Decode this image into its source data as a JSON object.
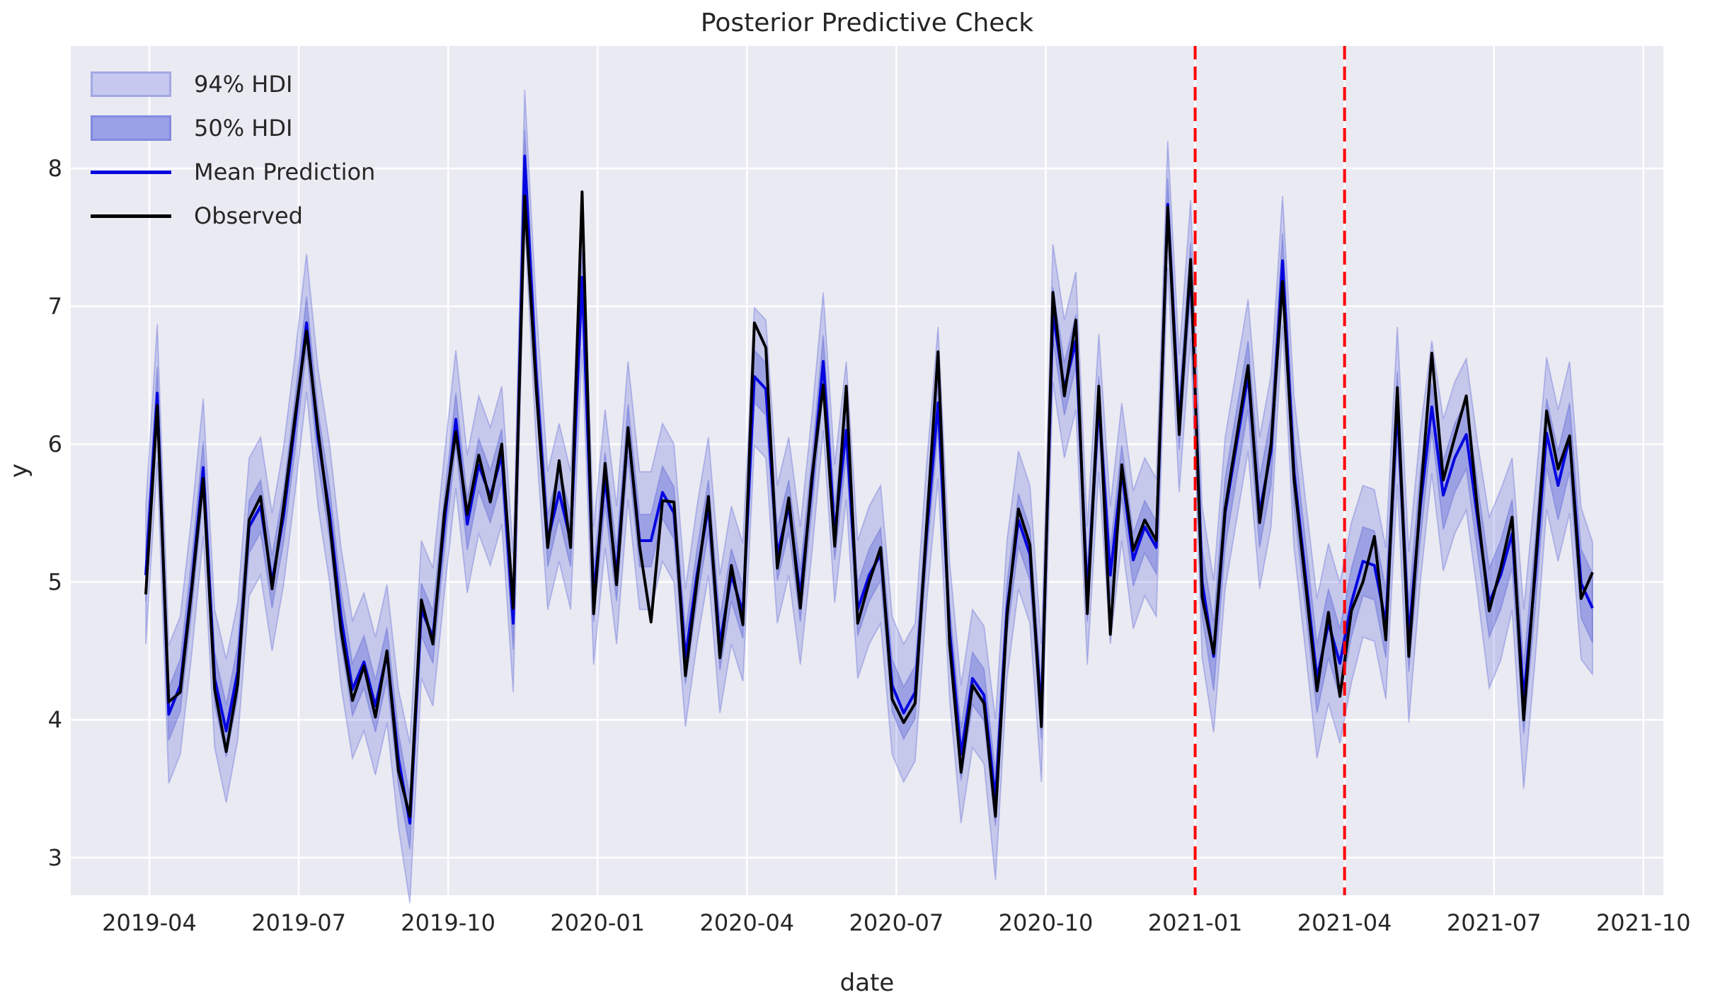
{
  "title": "Posterior Predictive Check",
  "x_axis_label": "date",
  "y_axis_label": "y",
  "legend": {
    "items": [
      {
        "label": "94% HDI",
        "kind": "band",
        "color_key": "band94_legend"
      },
      {
        "label": "50% HDI",
        "kind": "band",
        "color_key": "band50_legend"
      },
      {
        "label": "Mean Prediction",
        "kind": "line",
        "color_key": "mean_line"
      },
      {
        "label": "Observed",
        "kind": "line",
        "color_key": "observed"
      }
    ]
  },
  "colors": {
    "plot_bg": "#eaeaf2",
    "grid": "#ffffff",
    "text": "#262626",
    "observed": "#000000",
    "mean_line": "#0606df",
    "band_base": "#4650d2",
    "band94_alpha": 0.22,
    "band50_alpha": 0.32,
    "band_edge_alpha": 0.3,
    "band94_legend": "#c6c8ef",
    "band94_legend_border": "#a3a8e4",
    "band50_legend": "#9aa0e6",
    "band50_legend_border": "#8289df",
    "vline": "#ff0000"
  },
  "chart_data": {
    "type": "line",
    "title": "Posterior Predictive Check",
    "xlabel": "date",
    "ylabel": "y",
    "grid": true,
    "legend_position": "upper-left",
    "ylim": [
      2.73,
      8.89
    ],
    "y_ticks": [
      3,
      4,
      5,
      6,
      7,
      8
    ],
    "x_tick_labels": [
      "2019-04",
      "2019-07",
      "2019-10",
      "2020-01",
      "2020-04",
      "2020-07",
      "2020-10",
      "2021-01",
      "2021-04",
      "2021-07",
      "2021-10"
    ],
    "vlines": {
      "dates": [
        "2021-01-01",
        "2021-04-01"
      ],
      "tick_index": [
        7,
        8
      ],
      "style": "dashed",
      "color": "#ff0000"
    },
    "frequency": "weekly",
    "x_dates": [
      "2019-03-31",
      "2019-04-07",
      "2019-04-14",
      "2019-04-21",
      "2019-04-28",
      "2019-05-05",
      "2019-05-12",
      "2019-05-19",
      "2019-05-26",
      "2019-06-02",
      "2019-06-09",
      "2019-06-16",
      "2019-06-23",
      "2019-06-30",
      "2019-07-07",
      "2019-07-14",
      "2019-07-21",
      "2019-07-28",
      "2019-08-04",
      "2019-08-11",
      "2019-08-18",
      "2019-08-25",
      "2019-09-01",
      "2019-09-08",
      "2019-09-15",
      "2019-09-22",
      "2019-09-29",
      "2019-10-06",
      "2019-10-13",
      "2019-10-20",
      "2019-10-27",
      "2019-11-03",
      "2019-11-10",
      "2019-11-17",
      "2019-11-24",
      "2019-12-01",
      "2019-12-08",
      "2019-12-15",
      "2019-12-22",
      "2019-12-29",
      "2020-01-05",
      "2020-01-12",
      "2020-01-19",
      "2020-01-26",
      "2020-02-02",
      "2020-02-09",
      "2020-02-16",
      "2020-02-23",
      "2020-03-01",
      "2020-03-08",
      "2020-03-15",
      "2020-03-22",
      "2020-03-29",
      "2020-04-05",
      "2020-04-12",
      "2020-04-19",
      "2020-04-26",
      "2020-05-03",
      "2020-05-10",
      "2020-05-17",
      "2020-05-24",
      "2020-05-31",
      "2020-06-07",
      "2020-06-14",
      "2020-06-21",
      "2020-06-28",
      "2020-07-05",
      "2020-07-12",
      "2020-07-19",
      "2020-07-26",
      "2020-08-02",
      "2020-08-09",
      "2020-08-16",
      "2020-08-23",
      "2020-08-30",
      "2020-09-06",
      "2020-09-13",
      "2020-09-20",
      "2020-09-27",
      "2020-10-04",
      "2020-10-11",
      "2020-10-18",
      "2020-10-25",
      "2020-11-01",
      "2020-11-08",
      "2020-11-15",
      "2020-11-22",
      "2020-11-29",
      "2020-12-06",
      "2020-12-13",
      "2020-12-20",
      "2020-12-27",
      "2021-01-03",
      "2021-01-10",
      "2021-01-17",
      "2021-01-24",
      "2021-01-31",
      "2021-02-07",
      "2021-02-14",
      "2021-02-21",
      "2021-02-28",
      "2021-03-07",
      "2021-03-14",
      "2021-03-21",
      "2021-03-28",
      "2021-04-04",
      "2021-04-11",
      "2021-04-18",
      "2021-04-25",
      "2021-05-02",
      "2021-05-09",
      "2021-05-16",
      "2021-05-23",
      "2021-05-30",
      "2021-06-06",
      "2021-06-13",
      "2021-06-20",
      "2021-06-27",
      "2021-07-04",
      "2021-07-11",
      "2021-07-18",
      "2021-07-25",
      "2021-08-01",
      "2021-08-08",
      "2021-08-15",
      "2021-08-22",
      "2021-08-29"
    ],
    "series": [
      {
        "name": "Observed",
        "values": [
          4.91,
          6.28,
          4.13,
          4.2,
          4.95,
          5.75,
          4.22,
          3.77,
          4.26,
          5.45,
          5.62,
          4.95,
          5.55,
          6.2,
          6.82,
          6.1,
          5.44,
          4.65,
          4.14,
          4.39,
          4.02,
          4.5,
          3.63,
          3.3,
          4.87,
          4.55,
          5.5,
          6.09,
          5.49,
          5.92,
          5.58,
          6.0,
          4.81,
          7.8,
          6.4,
          5.25,
          5.88,
          5.25,
          7.83,
          4.77,
          5.86,
          4.98,
          6.12,
          5.26,
          4.71,
          5.59,
          5.58,
          4.32,
          5.0,
          5.62,
          4.45,
          5.12,
          4.69,
          6.88,
          6.7,
          5.1,
          5.61,
          4.81,
          5.75,
          6.43,
          5.26,
          6.42,
          4.7,
          5.0,
          5.25,
          4.15,
          3.98,
          4.12,
          5.4,
          6.67,
          4.55,
          3.62,
          4.25,
          4.12,
          3.3,
          4.75,
          5.53,
          5.27,
          3.95,
          7.1,
          6.35,
          6.9,
          4.77,
          6.42,
          4.62,
          5.85,
          5.23,
          5.45,
          5.3,
          7.72,
          6.07,
          7.34,
          4.89,
          4.48,
          5.53,
          6.05,
          6.57,
          5.43,
          6.0,
          7.18,
          5.75,
          4.99,
          4.21,
          4.78,
          4.17,
          4.79,
          5.0,
          5.33,
          4.58,
          6.41,
          4.46,
          5.6,
          6.66,
          5.74,
          6.05,
          6.35,
          5.51,
          4.79,
          5.1,
          5.47,
          4.0,
          5.1,
          6.24,
          5.82,
          6.06,
          4.88,
          5.07
        ]
      },
      {
        "name": "Mean Prediction",
        "values": [
          5.05,
          6.37,
          4.04,
          4.25,
          4.98,
          5.83,
          4.3,
          3.92,
          4.35,
          5.4,
          5.55,
          5.0,
          5.48,
          6.15,
          6.88,
          6.05,
          5.5,
          4.75,
          4.22,
          4.42,
          4.1,
          4.48,
          3.72,
          3.25,
          4.8,
          4.6,
          5.42,
          6.18,
          5.42,
          5.85,
          5.62,
          5.92,
          4.7,
          8.09,
          6.5,
          5.3,
          5.65,
          5.3,
          7.21,
          4.9,
          5.75,
          5.05,
          6.1,
          5.3,
          5.3,
          5.65,
          5.5,
          4.45,
          5.05,
          5.55,
          4.55,
          5.05,
          4.78,
          6.49,
          6.4,
          5.2,
          5.55,
          4.9,
          5.7,
          6.6,
          5.35,
          6.1,
          4.8,
          5.05,
          5.2,
          4.25,
          4.05,
          4.2,
          5.35,
          6.3,
          4.65,
          3.75,
          4.3,
          4.18,
          3.42,
          4.8,
          5.45,
          5.2,
          4.05,
          6.95,
          6.4,
          6.75,
          4.9,
          6.3,
          5.05,
          5.8,
          5.16,
          5.4,
          5.25,
          7.74,
          6.15,
          7.27,
          5.0,
          4.46,
          5.5,
          6.0,
          6.5,
          5.5,
          5.95,
          7.33,
          5.8,
          5.05,
          4.3,
          4.7,
          4.41,
          4.85,
          5.15,
          5.12,
          4.7,
          6.28,
          4.6,
          5.55,
          6.27,
          5.63,
          5.9,
          6.07,
          5.45,
          4.85,
          5.05,
          5.35,
          4.15,
          5.05,
          6.08,
          5.7,
          6.05,
          4.99,
          4.81
        ]
      }
    ],
    "bands": {
      "hdi94_half_width": [
        0.5,
        0.5,
        0.5,
        0.5,
        0.5,
        0.5,
        0.5,
        0.52,
        0.5,
        0.5,
        0.5,
        0.5,
        0.5,
        0.5,
        0.5,
        0.5,
        0.5,
        0.5,
        0.5,
        0.5,
        0.5,
        0.5,
        0.5,
        0.58,
        0.5,
        0.5,
        0.5,
        0.5,
        0.5,
        0.5,
        0.5,
        0.5,
        0.5,
        0.48,
        0.5,
        0.5,
        0.5,
        0.5,
        0.52,
        0.5,
        0.5,
        0.5,
        0.5,
        0.5,
        0.5,
        0.5,
        0.5,
        0.5,
        0.5,
        0.5,
        0.5,
        0.5,
        0.5,
        0.5,
        0.5,
        0.5,
        0.5,
        0.5,
        0.5,
        0.5,
        0.5,
        0.5,
        0.5,
        0.5,
        0.5,
        0.5,
        0.5,
        0.5,
        0.5,
        0.55,
        0.5,
        0.5,
        0.5,
        0.5,
        0.58,
        0.5,
        0.5,
        0.5,
        0.5,
        0.5,
        0.5,
        0.5,
        0.5,
        0.5,
        0.5,
        0.5,
        0.5,
        0.5,
        0.5,
        0.46,
        0.5,
        0.5,
        0.55,
        0.55,
        0.55,
        0.55,
        0.55,
        0.55,
        0.55,
        0.47,
        0.55,
        0.55,
        0.58,
        0.58,
        0.58,
        0.58,
        0.55,
        0.55,
        0.55,
        0.57,
        0.62,
        0.55,
        0.48,
        0.55,
        0.55,
        0.55,
        0.55,
        0.62,
        0.62,
        0.55,
        0.65,
        0.62,
        0.55,
        0.55,
        0.55,
        0.55,
        0.48
      ],
      "hdi50_half_width": [
        0.19,
        0.19,
        0.19,
        0.19,
        0.19,
        0.19,
        0.19,
        0.19,
        0.19,
        0.19,
        0.19,
        0.19,
        0.19,
        0.19,
        0.19,
        0.19,
        0.19,
        0.19,
        0.19,
        0.19,
        0.19,
        0.19,
        0.19,
        0.19,
        0.19,
        0.19,
        0.19,
        0.19,
        0.19,
        0.19,
        0.19,
        0.19,
        0.19,
        0.19,
        0.19,
        0.19,
        0.19,
        0.19,
        0.19,
        0.19,
        0.19,
        0.19,
        0.19,
        0.19,
        0.19,
        0.19,
        0.19,
        0.19,
        0.19,
        0.19,
        0.19,
        0.19,
        0.19,
        0.19,
        0.19,
        0.19,
        0.19,
        0.19,
        0.19,
        0.19,
        0.19,
        0.19,
        0.19,
        0.19,
        0.19,
        0.19,
        0.19,
        0.19,
        0.19,
        0.19,
        0.19,
        0.19,
        0.19,
        0.19,
        0.19,
        0.19,
        0.19,
        0.19,
        0.19,
        0.19,
        0.19,
        0.19,
        0.19,
        0.19,
        0.19,
        0.19,
        0.19,
        0.19,
        0.19,
        0.19,
        0.19,
        0.19,
        0.25,
        0.25,
        0.25,
        0.25,
        0.25,
        0.25,
        0.25,
        0.2,
        0.25,
        0.25,
        0.25,
        0.25,
        0.25,
        0.25,
        0.25,
        0.25,
        0.25,
        0.25,
        0.25,
        0.25,
        0.17,
        0.25,
        0.25,
        0.25,
        0.25,
        0.25,
        0.25,
        0.25,
        0.25,
        0.25,
        0.25,
        0.25,
        0.25,
        0.25,
        0.25
      ],
      "hdi94_label": "94% HDI",
      "hdi50_label": "50% HDI"
    }
  }
}
